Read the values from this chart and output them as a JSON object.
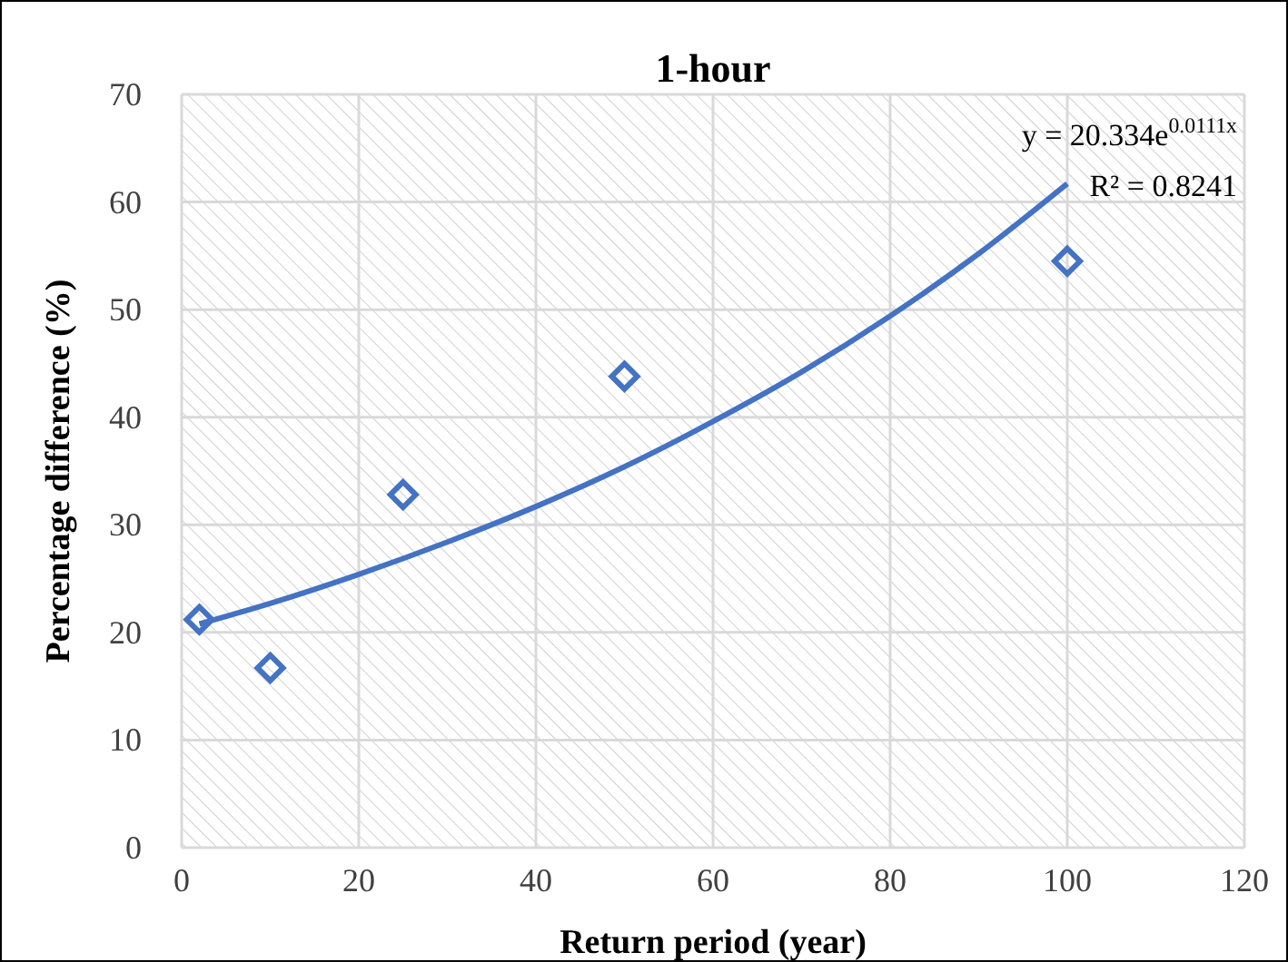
{
  "chart_data": {
    "type": "scatter",
    "title": "1-hour",
    "xlabel": "Return period (year)",
    "ylabel": "Percentage difference (%)",
    "xlim": [
      0,
      120
    ],
    "xticks": [
      0,
      20,
      40,
      60,
      80,
      100,
      120
    ],
    "ylim": [
      0,
      70
    ],
    "yticks": [
      0,
      10,
      20,
      30,
      40,
      50,
      60,
      70
    ],
    "grid": true,
    "series": [
      {
        "color": "#4472c4",
        "marker": "diamond",
        "x": [
          2,
          10,
          25,
          50,
          100
        ],
        "values": [
          21.2,
          16.7,
          32.8,
          43.8,
          54.5
        ]
      },
      {
        "type": "line",
        "color": "#4472c4",
        "marker": "none",
        "x": [
          2,
          10,
          20,
          30,
          40,
          50,
          60,
          70,
          80,
          90,
          100
        ],
        "values": [
          20.8,
          22.7,
          25.4,
          28.4,
          31.7,
          35.4,
          39.6,
          44.2,
          49.4,
          55.2,
          61.7
        ]
      }
    ],
    "annotations": [
      "y = 20.334e$^{0.0111x}$",
      "R² = 0.8241"
    ]
  }
}
